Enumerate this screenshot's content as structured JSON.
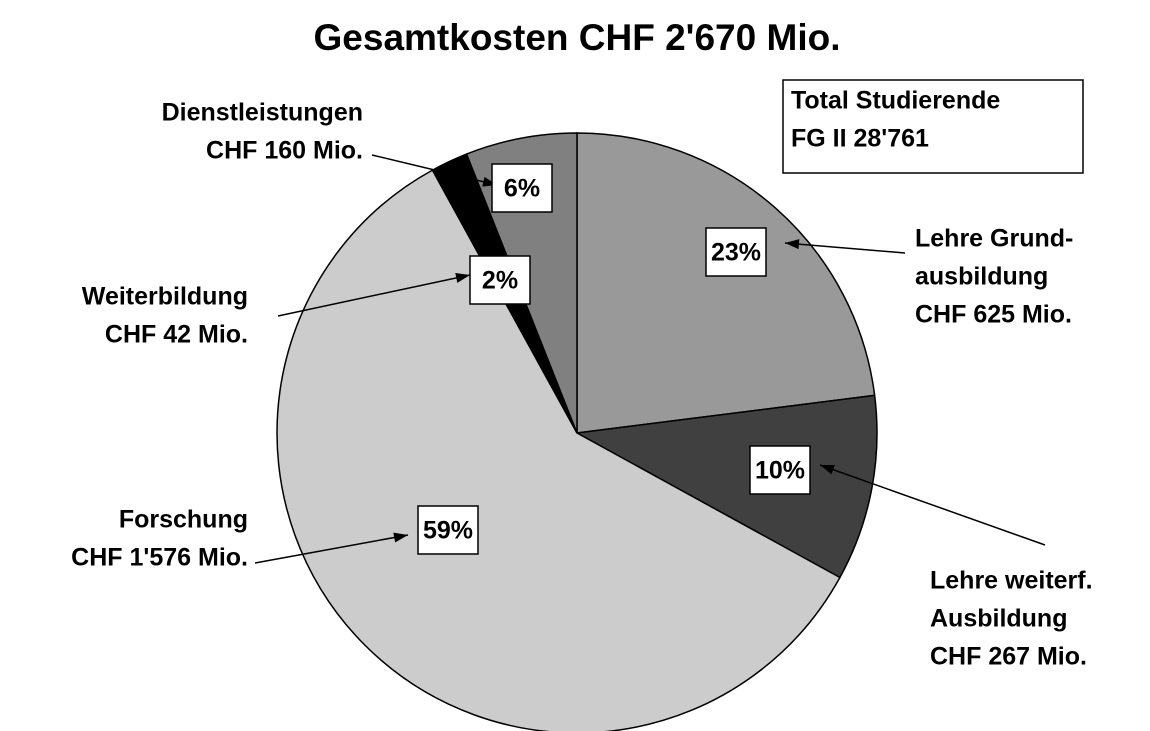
{
  "chart_data": {
    "type": "pie",
    "title": "Gesamtkosten CHF 2'670 Mio.",
    "annotation": [
      "Total Studierende",
      "FG II 28'761"
    ],
    "categories": [
      [
        "Lehre Grund-",
        "ausbildung"
      ],
      [
        "Lehre weiterf.",
        "Ausbildung"
      ],
      [
        "Forschung"
      ],
      [
        "Weiterbildung"
      ],
      [
        "Dienstleistungen"
      ]
    ],
    "values": [
      23,
      10,
      59,
      2,
      6
    ],
    "value_labels": [
      "23%",
      "10%",
      "59%",
      "2%",
      "6%"
    ],
    "amounts": [
      625,
      267,
      1576,
      42,
      160
    ],
    "amount_labels": [
      "CHF 625 Mio.",
      "CHF 267 Mio.",
      "CHF 1'576 Mio.",
      "CHF 42 Mio.",
      "CHF 160 Mio."
    ],
    "colors": [
      "#999999",
      "#404040",
      "#cccccc",
      "#000000",
      "#808080"
    ]
  }
}
